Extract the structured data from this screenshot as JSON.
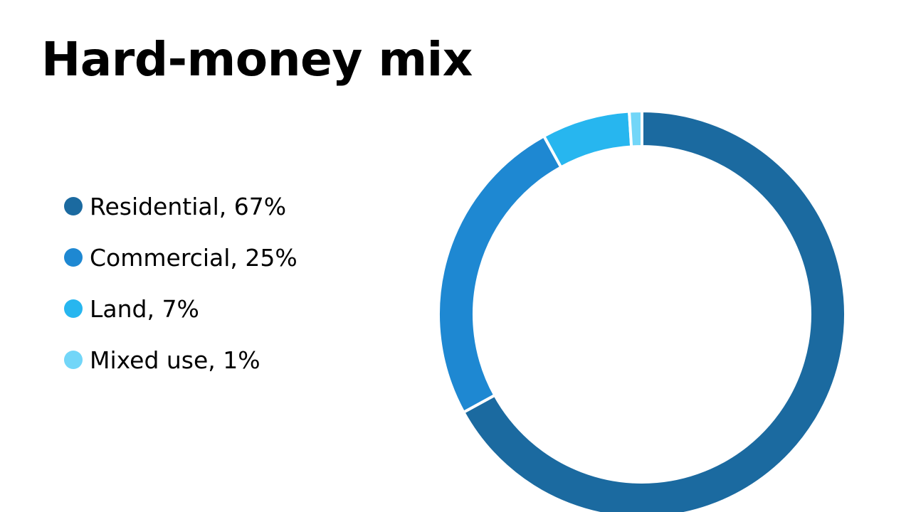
{
  "slide": {
    "title": "Hard-money mix"
  },
  "chart_data": {
    "type": "pie",
    "variant": "donut",
    "categories": [
      "Residential",
      "Commercial",
      "Land",
      "Mixed use"
    ],
    "values": [
      67,
      25,
      7,
      1
    ],
    "unit": "%",
    "title": "Hard-money mix",
    "legend_labels": [
      "Residential, 67%",
      "Commercial, 25%",
      "Land, 7%",
      "Mixed use, 1%"
    ],
    "colors": [
      "#1b6aa0",
      "#1e88d2",
      "#27b6ef",
      "#72d6f8"
    ],
    "legend_position": "left"
  }
}
